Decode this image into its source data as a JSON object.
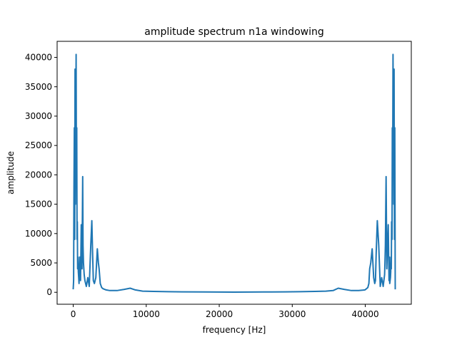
{
  "chart_data": {
    "type": "line",
    "title": "amplitude spectrum n1a windowing",
    "xlabel": "frequency [Hz]",
    "ylabel": "amplitude",
    "xlim": [
      -2205,
      46305
    ],
    "ylim": [
      -2035,
      42735
    ],
    "grid": false,
    "color": "#1f77b4",
    "xticks": [
      0,
      10000,
      20000,
      30000,
      40000
    ],
    "xtick_labels": [
      "0",
      "10000",
      "20000",
      "30000",
      "40000"
    ],
    "yticks": [
      0,
      5000,
      10000,
      15000,
      20000,
      25000,
      30000,
      35000,
      40000
    ],
    "ytick_labels": [
      "0",
      "5000",
      "10000",
      "15000",
      "20000",
      "25000",
      "30000",
      "35000",
      "40000"
    ],
    "series": [
      {
        "name": "amplitude spectrum",
        "x": [
          0,
          50,
          100,
          150,
          200,
          250,
          300,
          350,
          400,
          440,
          480,
          520,
          560,
          600,
          650,
          700,
          750,
          800,
          900,
          1000,
          1100,
          1200,
          1300,
          1350,
          1400,
          1500,
          1600,
          1800,
          2000,
          2200,
          2400,
          2550,
          2650,
          2750,
          2900,
          3100,
          3300,
          3450,
          3550,
          3700,
          3900,
          4100,
          4500,
          5000,
          6000,
          7000,
          7800,
          8500,
          9500,
          11000,
          13000,
          15000,
          18000,
          20000,
          22050,
          24100,
          26100,
          29100,
          31100,
          33100,
          34600,
          35600,
          36300,
          37100,
          38100,
          39100,
          39950,
          40150,
          40350,
          40500,
          40600,
          40750,
          40950,
          41150,
          41300,
          41400,
          41500,
          41650,
          41850,
          42050,
          42250,
          42450,
          42650,
          42700,
          42750,
          42850,
          42950,
          43150,
          43250,
          43300,
          43350,
          43450,
          43490,
          43530,
          43570,
          43610,
          43660,
          43700,
          43750,
          43800,
          43850,
          43900,
          43950,
          44000,
          44050,
          44100
        ],
        "values": [
          500,
          2000,
          18000,
          28000,
          9000,
          38000,
          15000,
          28000,
          40500,
          20000,
          28000,
          9000,
          12000,
          4000,
          6000,
          3500,
          2500,
          1500,
          6000,
          2000,
          11500,
          4000,
          19700,
          8000,
          5000,
          3000,
          2000,
          1000,
          2500,
          1000,
          8000,
          12200,
          7000,
          2000,
          1500,
          2500,
          7400,
          5000,
          4000,
          1500,
          800,
          600,
          400,
          300,
          300,
          500,
          700,
          400,
          200,
          150,
          100,
          80,
          50,
          40,
          30,
          40,
          50,
          80,
          100,
          150,
          200,
          300,
          700,
          500,
          300,
          300,
          400,
          600,
          800,
          1500,
          4000,
          5000,
          7400,
          2500,
          1500,
          2000,
          7000,
          12200,
          8000,
          1000,
          2500,
          1000,
          3000,
          5000,
          8000,
          19700,
          4000,
          11500,
          2000,
          6000,
          1500,
          2500,
          3500,
          6000,
          4000,
          12000,
          9000,
          28000,
          20000,
          40500,
          28000,
          15000,
          38000,
          9000,
          28000,
          500
        ]
      }
    ]
  }
}
